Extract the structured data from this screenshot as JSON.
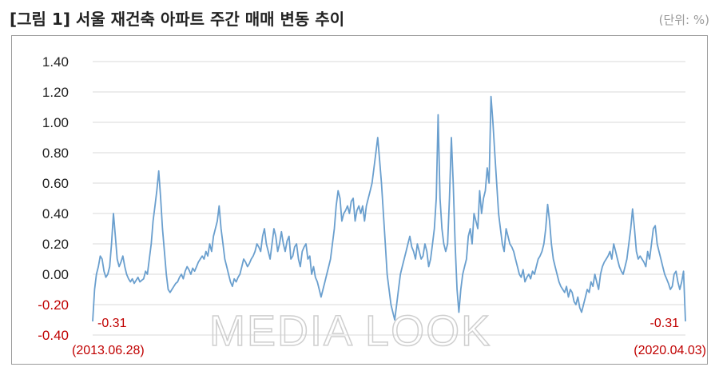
{
  "header": {
    "title": "[그림 1] 서울 재건축 아파트 주간 매매 변동 추이",
    "unit": "(단위: %)"
  },
  "watermark": {
    "text": "MEDIA LOOK"
  },
  "chart_data": {
    "type": "line",
    "title": "[그림 1] 서울 재건축 아파트 주간 매매 변동 추이",
    "xlabel": "",
    "ylabel": "",
    "unit": "%",
    "ylim": [
      -0.4,
      1.4
    ],
    "yticks": [
      -0.4,
      -0.2,
      0.0,
      0.2,
      0.4,
      0.6,
      0.8,
      1.0,
      1.2,
      1.4
    ],
    "ytick_labels": [
      "-0.40",
      "-0.20",
      "0.00",
      "0.20",
      "0.40",
      "0.60",
      "0.80",
      "1.00",
      "1.20",
      "1.40"
    ],
    "x_start_label": "(2013.06.28)",
    "x_end_label": "(2020.04.03)",
    "grid": true,
    "line_color": "#6a9fce",
    "annotations": [
      {
        "text": "-0.31",
        "at": "start"
      },
      {
        "text": "-0.31",
        "at": "end"
      }
    ],
    "series": [
      {
        "values": [
          -0.31,
          -0.1,
          0.0,
          0.05,
          0.12,
          0.1,
          0.02,
          -0.02,
          0.0,
          0.05,
          0.2,
          0.4,
          0.25,
          0.1,
          0.05,
          0.08,
          0.12,
          0.05,
          0.0,
          -0.03,
          -0.05,
          -0.03,
          -0.06,
          -0.04,
          -0.02,
          -0.05,
          -0.04,
          -0.03,
          0.02,
          0.0,
          0.1,
          0.2,
          0.35,
          0.45,
          0.55,
          0.68,
          0.5,
          0.3,
          0.15,
          0.0,
          -0.1,
          -0.12,
          -0.1,
          -0.08,
          -0.06,
          -0.05,
          -0.02,
          0.0,
          -0.03,
          0.02,
          0.05,
          0.03,
          0.0,
          0.04,
          0.02,
          0.05,
          0.08,
          0.1,
          0.12,
          0.1,
          0.15,
          0.12,
          0.2,
          0.15,
          0.25,
          0.3,
          0.35,
          0.45,
          0.3,
          0.2,
          0.1,
          0.05,
          0.0,
          -0.05,
          -0.08,
          -0.03,
          -0.05,
          -0.02,
          0.0,
          0.05,
          0.1,
          0.08,
          0.05,
          0.07,
          0.1,
          0.12,
          0.15,
          0.2,
          0.18,
          0.15,
          0.25,
          0.3,
          0.2,
          0.15,
          0.1,
          0.2,
          0.3,
          0.25,
          0.15,
          0.2,
          0.28,
          0.2,
          0.15,
          0.22,
          0.25,
          0.1,
          0.12,
          0.18,
          0.2,
          0.1,
          0.05,
          0.15,
          0.18,
          0.2,
          0.1,
          0.12,
          0.0,
          0.05,
          -0.02,
          -0.05,
          -0.1,
          -0.15,
          -0.1,
          -0.05,
          0.0,
          0.05,
          0.1,
          0.2,
          0.3,
          0.45,
          0.55,
          0.5,
          0.35,
          0.4,
          0.42,
          0.45,
          0.4,
          0.48,
          0.5,
          0.35,
          0.42,
          0.45,
          0.4,
          0.45,
          0.35,
          0.45,
          0.5,
          0.55,
          0.6,
          0.7,
          0.8,
          0.9,
          0.75,
          0.6,
          0.4,
          0.2,
          0.0,
          -0.1,
          -0.2,
          -0.25,
          -0.3,
          -0.2,
          -0.1,
          0.0,
          0.05,
          0.1,
          0.15,
          0.2,
          0.25,
          0.18,
          0.15,
          0.1,
          0.2,
          0.15,
          0.1,
          0.12,
          0.2,
          0.15,
          0.05,
          0.1,
          0.2,
          0.3,
          0.5,
          1.05,
          0.5,
          0.3,
          0.2,
          0.15,
          0.2,
          0.5,
          0.9,
          0.6,
          0.2,
          -0.1,
          -0.25,
          -0.1,
          0.0,
          0.05,
          0.1,
          0.25,
          0.3,
          0.2,
          0.4,
          0.35,
          0.3,
          0.55,
          0.4,
          0.5,
          0.55,
          0.7,
          0.6,
          1.17,
          1.0,
          0.8,
          0.6,
          0.4,
          0.3,
          0.2,
          0.15,
          0.3,
          0.25,
          0.2,
          0.18,
          0.15,
          0.1,
          0.05,
          0.0,
          -0.02,
          0.03,
          -0.05,
          -0.02,
          0.0,
          -0.03,
          0.02,
          0.0,
          0.05,
          0.1,
          0.12,
          0.15,
          0.2,
          0.3,
          0.46,
          0.35,
          0.2,
          0.1,
          0.05,
          0.0,
          -0.05,
          -0.08,
          -0.1,
          -0.12,
          -0.08,
          -0.15,
          -0.1,
          -0.12,
          -0.18,
          -0.2,
          -0.15,
          -0.22,
          -0.25,
          -0.2,
          -0.15,
          -0.1,
          -0.12,
          -0.05,
          -0.08,
          0.0,
          -0.05,
          -0.1,
          0.0,
          0.05,
          0.08,
          0.1,
          0.12,
          0.15,
          0.1,
          0.2,
          0.15,
          0.1,
          0.05,
          0.02,
          0.0,
          0.05,
          0.1,
          0.2,
          0.3,
          0.43,
          0.3,
          0.15,
          0.1,
          0.12,
          0.1,
          0.08,
          0.05,
          0.15,
          0.1,
          0.2,
          0.3,
          0.32,
          0.2,
          0.15,
          0.1,
          0.05,
          0.0,
          -0.03,
          -0.06,
          -0.1,
          -0.08,
          0.0,
          0.02,
          -0.05,
          -0.1,
          -0.05,
          0.02,
          -0.31
        ]
      }
    ]
  }
}
